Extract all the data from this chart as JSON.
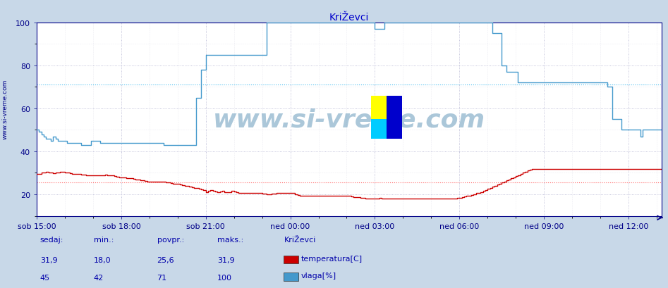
{
  "title": "KriŽevci",
  "bg_color": "#c8d8e8",
  "plot_bg_color": "#ffffff",
  "line_color_temp": "#cc0000",
  "line_color_hum": "#4499cc",
  "ref_line_temp": 25.6,
  "ref_line_hum": 71,
  "ref_color_temp": "#ff6666",
  "ref_color_hum": "#44bbee",
  "ylim": [
    10,
    100
  ],
  "yticks": [
    20,
    40,
    60,
    80,
    100
  ],
  "xtick_labels": [
    "sob 15:00",
    "sob 18:00",
    "sob 21:00",
    "ned 00:00",
    "ned 03:00",
    "ned 06:00",
    "ned 09:00",
    "ned 12:00"
  ],
  "xtick_positions": [
    0,
    36,
    72,
    108,
    144,
    180,
    216,
    252
  ],
  "total_points": 288,
  "legend_labels": [
    "temperatura[C]",
    "vlaga[%]"
  ],
  "legend_colors": [
    "#cc0000",
    "#4499cc"
  ],
  "footer_col_headers": [
    "sedaj:",
    "min.:",
    "povpr.:",
    "maks.:",
    "KriŽevci"
  ],
  "footer_values_temp": [
    "31,9",
    "18,0",
    "25,6",
    "31,9"
  ],
  "footer_values_hum": [
    "45",
    "42",
    "71",
    "100"
  ],
  "watermark": "www.si-vreme.com",
  "temp_data": [
    29.5,
    29.5,
    30.0,
    30.2,
    30.5,
    30.3,
    30.0,
    29.8,
    30.0,
    30.2,
    30.4,
    30.5,
    30.2,
    30.0,
    29.8,
    29.5,
    29.5,
    29.5,
    29.5,
    29.3,
    29.2,
    29.0,
    29.0,
    29.0,
    29.0,
    29.0,
    29.0,
    29.0,
    29.0,
    29.2,
    29.0,
    29.0,
    28.8,
    28.5,
    28.2,
    28.0,
    28.0,
    27.8,
    27.5,
    27.5,
    27.5,
    27.2,
    27.0,
    26.8,
    26.5,
    26.5,
    26.2,
    26.0,
    25.8,
    25.8,
    25.8,
    25.8,
    25.8,
    25.8,
    25.8,
    25.6,
    25.5,
    25.3,
    25.0,
    24.8,
    24.8,
    24.5,
    24.3,
    24.0,
    23.8,
    23.5,
    23.2,
    23.0,
    22.8,
    22.5,
    22.3,
    22.0,
    21.0,
    21.5,
    21.8,
    21.5,
    21.3,
    21.0,
    21.3,
    21.5,
    21.0,
    21.0,
    21.0,
    21.5,
    21.2,
    21.0,
    20.8,
    20.7,
    20.5,
    20.5,
    20.5,
    20.5,
    20.5,
    20.5,
    20.5,
    20.5,
    20.3,
    20.2,
    20.0,
    20.0,
    20.2,
    20.3,
    20.5,
    20.5,
    20.5,
    20.5,
    20.5,
    20.5,
    20.5,
    20.5,
    20.0,
    19.8,
    19.5,
    19.5,
    19.5,
    19.5,
    19.5,
    19.5,
    19.5,
    19.5,
    19.5,
    19.5,
    19.5,
    19.5,
    19.5,
    19.5,
    19.5,
    19.5,
    19.5,
    19.5,
    19.5,
    19.5,
    19.5,
    19.3,
    19.0,
    18.8,
    18.8,
    18.8,
    18.5,
    18.3,
    18.0,
    18.0,
    18.0,
    18.0,
    18.0,
    18.0,
    18.2,
    18.0,
    18.0,
    18.0,
    18.0,
    18.0,
    18.0,
    18.0,
    18.0,
    18.0,
    18.0,
    18.0,
    18.0,
    18.0,
    18.0,
    18.0,
    18.0,
    18.0,
    18.0,
    18.0,
    18.0,
    18.0,
    18.0,
    18.0,
    18.0,
    18.0,
    18.0,
    18.0,
    18.0,
    18.0,
    18.0,
    18.0,
    18.0,
    18.2,
    18.5,
    18.8,
    19.0,
    19.2,
    19.5,
    19.8,
    20.0,
    20.5,
    20.8,
    21.0,
    21.5,
    22.0,
    22.5,
    23.0,
    23.5,
    24.0,
    24.5,
    25.0,
    25.5,
    26.0,
    26.5,
    27.0,
    27.5,
    28.0,
    28.5,
    29.0,
    29.5,
    30.0,
    30.5,
    31.0,
    31.5,
    31.9,
    31.9,
    31.9,
    31.9,
    31.9,
    31.9,
    31.9,
    31.9,
    31.9,
    31.9,
    31.9,
    31.9,
    31.9,
    31.9,
    31.9,
    31.9,
    31.9,
    31.9,
    31.9,
    31.9,
    31.9,
    31.9,
    31.9,
    31.9,
    31.9,
    31.9,
    31.9,
    31.9,
    31.9,
    31.9,
    31.9,
    31.9,
    31.9,
    31.9,
    31.9,
    31.9,
    31.9,
    31.9,
    31.9,
    31.9,
    31.9,
    31.9,
    31.9,
    31.9,
    31.9,
    31.9,
    31.9,
    31.9,
    31.9,
    31.9,
    31.9,
    31.9,
    31.9,
    31.9,
    31.9,
    31.9
  ],
  "hum_data": [
    50,
    49,
    48,
    47,
    46,
    46,
    45,
    47,
    46,
    45,
    45,
    45,
    45,
    44,
    44,
    44,
    44,
    44,
    44,
    43,
    43,
    43,
    43,
    45,
    45,
    45,
    45,
    44,
    44,
    44,
    44,
    44,
    44,
    44,
    44,
    44,
    44,
    44,
    44,
    44,
    44,
    44,
    44,
    44,
    44,
    44,
    44,
    44,
    44,
    44,
    44,
    44,
    44,
    44,
    43,
    43,
    43,
    43,
    43,
    43,
    43,
    43,
    43,
    43,
    43,
    43,
    43,
    43,
    65,
    65,
    78,
    78,
    85,
    85,
    85,
    85,
    85,
    85,
    85,
    85,
    85,
    85,
    85,
    85,
    85,
    85,
    85,
    85,
    85,
    85,
    85,
    85,
    85,
    85,
    85,
    85,
    85,
    85,
    100,
    100,
    100,
    100,
    100,
    100,
    100,
    100,
    100,
    100,
    100,
    100,
    100,
    100,
    100,
    100,
    100,
    100,
    100,
    100,
    100,
    100,
    100,
    100,
    100,
    100,
    100,
    100,
    100,
    100,
    100,
    100,
    100,
    100,
    100,
    100,
    100,
    100,
    100,
    100,
    100,
    100,
    100,
    100,
    100,
    100,
    97,
    97,
    97,
    97,
    100,
    100,
    100,
    100,
    100,
    100,
    100,
    100,
    100,
    100,
    100,
    100,
    100,
    100,
    100,
    100,
    100,
    100,
    100,
    100,
    100,
    100,
    100,
    100,
    100,
    100,
    100,
    100,
    100,
    100,
    100,
    100,
    100,
    100,
    100,
    100,
    100,
    100,
    100,
    100,
    100,
    100,
    100,
    100,
    100,
    100,
    95,
    95,
    95,
    95,
    80,
    80,
    77,
    77,
    77,
    77,
    77,
    72,
    72,
    72,
    72,
    72,
    72,
    72,
    72,
    72,
    72,
    72,
    72,
    72,
    72,
    72,
    72,
    72,
    72,
    72,
    72,
    72,
    72,
    72,
    72,
    72,
    72,
    72,
    72,
    72,
    72,
    72,
    72,
    72,
    72,
    72,
    72,
    72,
    72,
    70,
    70,
    55,
    55,
    55,
    55,
    50,
    50,
    50,
    50,
    50,
    50,
    50,
    50,
    47,
    50,
    50,
    50,
    50,
    50,
    50,
    50,
    50,
    50,
    50,
    50,
    50,
    50,
    50,
    50,
    50,
    50,
    50,
    50,
    50,
    50,
    50,
    50,
    50,
    50,
    50,
    50,
    45,
    45,
    45
  ]
}
